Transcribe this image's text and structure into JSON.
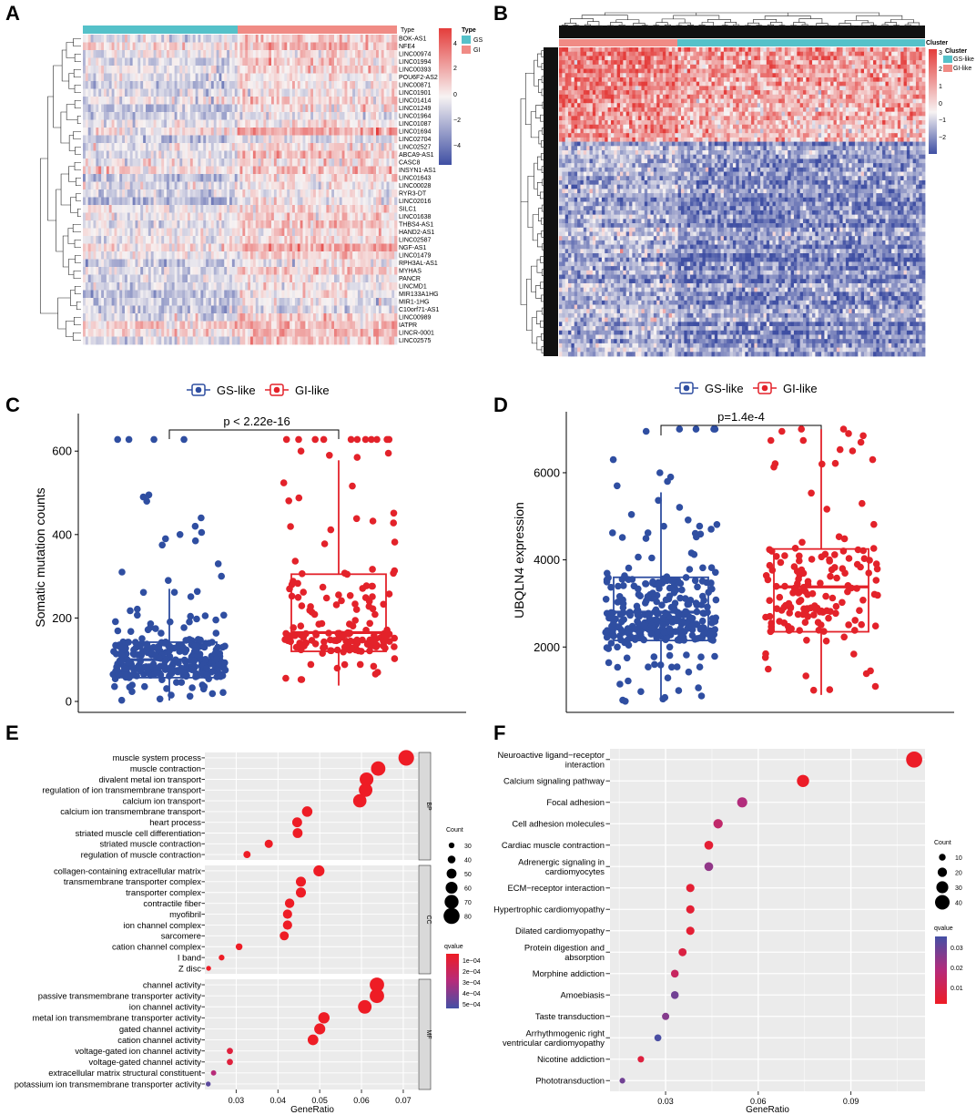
{
  "panel_letters": [
    "A",
    "B",
    "C",
    "D",
    "E",
    "F"
  ],
  "colors": {
    "gs": "#2f4ea1",
    "gi": "#e3222a",
    "teal": "#55c1c9",
    "salmon": "#f08b85",
    "heat_high": "#e43d3b",
    "heat_low": "#3f4fa3",
    "heat_mid": "#f7f3f3"
  },
  "chart_data": [
    {
      "id": "A",
      "type": "heatmap",
      "annotation_title": "Type",
      "legend_title": "Type",
      "legend_items": [
        "GS",
        "GI"
      ],
      "color_scale_labels": [
        "4",
        "2",
        "0",
        "−2",
        "−4"
      ],
      "rows": [
        "BOK-AS1",
        "NFE4",
        "LINC00974",
        "LINC01994",
        "LINC00393",
        "POU6F2-AS2",
        "LINC00871",
        "LINC01901",
        "LINC01414",
        "LINC01249",
        "LINC01964",
        "LINC01087",
        "LINC01694",
        "LINC02704",
        "LINC02527",
        "ABCA9-AS1",
        "CASC8",
        "INSYN1-AS1",
        "LINC01643",
        "LINC00028",
        "RYR3-DT",
        "LINC02016",
        "SILC1",
        "LINC01638",
        "THBS4-AS1",
        "HAND2-AS1",
        "LINC02587",
        "NGF-AS1",
        "LINC01479",
        "RPH3AL-AS1",
        "MYHAS",
        "PANCR",
        "LINCMD1",
        "MIR133A1HG",
        "MIR1-1HG",
        "C10orf71-AS1",
        "LINC00989",
        "IATPR",
        "LINCR-0001",
        "LINC02575"
      ]
    },
    {
      "id": "B",
      "type": "heatmap",
      "annotation_title": "Cluster",
      "legend_title": "Cluster",
      "legend_items": [
        "GS-like",
        "GI-like"
      ],
      "color_scale_labels": [
        "3",
        "2",
        "1",
        "0",
        "−1",
        "−2"
      ]
    },
    {
      "id": "C",
      "type": "box",
      "legend": [
        "GS-like",
        "GI-like"
      ],
      "ylabel": "Somatic mutation counts",
      "yticks": [
        "0",
        "200",
        "400",
        "600"
      ],
      "ylim": [
        0,
        690
      ],
      "pvalue": "p < 2.22e-16",
      "groups": [
        {
          "name": "GS-like",
          "q1": 57,
          "median": 100,
          "q3": 142,
          "whisker_low": 2,
          "whisker_high": 270
        },
        {
          "name": "GI-like",
          "q1": 120,
          "median": 165,
          "q3": 305,
          "whisker_low": 38,
          "whisker_high": 578
        }
      ]
    },
    {
      "id": "D",
      "type": "box",
      "legend": [
        "GS-like",
        "GI-like"
      ],
      "ylabel": "UBQLN4 expression",
      "yticks": [
        "2000",
        "4000",
        "6000"
      ],
      "ylim": [
        500,
        7400
      ],
      "pvalue": "p=1.4e-4",
      "groups": [
        {
          "name": "GS-like",
          "q1": 2150,
          "median": 2800,
          "q3": 3600,
          "whisker_low": 750,
          "whisker_high": 5550
        },
        {
          "name": "GI-like",
          "q1": 2350,
          "median": 3380,
          "q3": 4250,
          "whisker_low": 900,
          "whisker_high": 7000
        }
      ]
    },
    {
      "id": "E",
      "type": "scatter",
      "xlabel": "GeneRatio",
      "xticks": [
        "0.03",
        "0.04",
        "0.05",
        "0.06",
        "0.07"
      ],
      "xlim": [
        0.0225,
        0.0735
      ],
      "count_title": "Count",
      "count_breaks": [
        "30",
        "40",
        "50",
        "60",
        "70",
        "80"
      ],
      "q_title": "qvalue",
      "q_labels": [
        "1e−04",
        "2e−04",
        "3e−04",
        "4e−04",
        "5e−04"
      ],
      "facets": [
        {
          "name": "BP",
          "terms": [
            {
              "term": "muscle system process",
              "x": 0.0707,
              "count": 78,
              "q": 0.0
            },
            {
              "term": "muscle contraction",
              "x": 0.064,
              "count": 72,
              "q": 0.0
            },
            {
              "term": "divalent metal ion transport",
              "x": 0.0612,
              "count": 69,
              "q": 0.0
            },
            {
              "term": "regulation of ion transmembrane transport",
              "x": 0.061,
              "count": 68,
              "q": 0.0
            },
            {
              "term": "calcium ion transport",
              "x": 0.0596,
              "count": 67,
              "q": 0.0
            },
            {
              "term": "calcium ion transmembrane transport",
              "x": 0.047,
              "count": 53,
              "q": 0.0
            },
            {
              "term": "heart process",
              "x": 0.0446,
              "count": 50,
              "q": 0.0
            },
            {
              "term": "striated muscle cell differentiation",
              "x": 0.0447,
              "count": 50,
              "q": 0.0
            },
            {
              "term": "striated muscle contraction",
              "x": 0.0378,
              "count": 42,
              "q": 0.0
            },
            {
              "term": "regulation of muscle contraction",
              "x": 0.0326,
              "count": 37,
              "q": 0.0
            }
          ]
        },
        {
          "name": "CC",
          "terms": [
            {
              "term": "collagen-containing extracellular matrix",
              "x": 0.0498,
              "count": 56,
              "q": 0.0
            },
            {
              "term": "transmembrane transporter complex",
              "x": 0.0455,
              "count": 51,
              "q": 0.0
            },
            {
              "term": "transporter complex",
              "x": 0.0455,
              "count": 51,
              "q": 0.0
            },
            {
              "term": "contractile fiber",
              "x": 0.0428,
              "count": 48,
              "q": 0.0
            },
            {
              "term": "myofibril",
              "x": 0.0423,
              "count": 47,
              "q": 0.0
            },
            {
              "term": "ion channel complex",
              "x": 0.0423,
              "count": 47,
              "q": 0.0
            },
            {
              "term": "sarcomere",
              "x": 0.0415,
              "count": 46,
              "q": 0.0
            },
            {
              "term": "cation channel complex",
              "x": 0.0307,
              "count": 35,
              "q": 0.0
            },
            {
              "term": "I band",
              "x": 0.0265,
              "count": 30,
              "q": 0.0
            },
            {
              "term": "Z disc",
              "x": 0.0234,
              "count": 26,
              "q": 0.0
            }
          ]
        },
        {
          "name": "MF",
          "terms": [
            {
              "term": "channel activity",
              "x": 0.0637,
              "count": 72,
              "q": 0.0
            },
            {
              "term": "passive transmembrane transporter activity",
              "x": 0.0637,
              "count": 72,
              "q": 0.0
            },
            {
              "term": "ion channel activity",
              "x": 0.0608,
              "count": 68,
              "q": 0.0
            },
            {
              "term": "metal ion transmembrane transporter activity",
              "x": 0.051,
              "count": 57,
              "q": 0.0
            },
            {
              "term": "gated channel activity",
              "x": 0.05,
              "count": 56,
              "q": 0.0
            },
            {
              "term": "cation channel activity",
              "x": 0.0484,
              "count": 54,
              "q": 0.0
            },
            {
              "term": "voltage-gated ion channel activity",
              "x": 0.0285,
              "count": 32,
              "q": 8e-05
            },
            {
              "term": "voltage-gated channel activity",
              "x": 0.0285,
              "count": 32,
              "q": 8e-05
            },
            {
              "term": "extracellular matrix structural constituent",
              "x": 0.0246,
              "count": 28,
              "q": 0.00029
            },
            {
              "term": "potassium ion transmembrane transporter activity",
              "x": 0.0233,
              "count": 26,
              "q": 0.00054
            }
          ]
        }
      ]
    },
    {
      "id": "F",
      "type": "scatter",
      "xlabel": "GeneRatio",
      "xticks": [
        "0.03",
        "0.06",
        "0.09"
      ],
      "xlim": [
        0.012,
        0.114
      ],
      "count_title": "Count",
      "count_breaks": [
        "10",
        "20",
        "30",
        "40"
      ],
      "q_title": "qvalue",
      "q_labels": [
        "0.03",
        "0.02",
        "0.01"
      ],
      "terms": [
        {
          "term": [
            "Neuroactive ligand−receptor",
            "interaction"
          ],
          "x": 0.1105,
          "count": 46,
          "q": 0.0005
        },
        {
          "term": [
            "Calcium signaling pathway"
          ],
          "x": 0.0745,
          "count": 31,
          "q": 0.0005
        },
        {
          "term": [
            "Focal adhesion"
          ],
          "x": 0.0548,
          "count": 23,
          "q": 0.018
        },
        {
          "term": [
            "Cell adhesion molecules"
          ],
          "x": 0.047,
          "count": 20,
          "q": 0.014
        },
        {
          "term": [
            "Cardiac muscle contraction"
          ],
          "x": 0.044,
          "count": 18,
          "q": 0.003
        },
        {
          "term": [
            "Adrenergic signaling in",
            "cardiomyocytes"
          ],
          "x": 0.044,
          "count": 18,
          "q": 0.023
        },
        {
          "term": [
            "ECM−receptor interaction"
          ],
          "x": 0.038,
          "count": 16,
          "q": 0.003
        },
        {
          "term": [
            "Hypertrophic cardiomyopathy"
          ],
          "x": 0.038,
          "count": 16,
          "q": 0.003
        },
        {
          "term": [
            "Dilated cardiomyopathy"
          ],
          "x": 0.038,
          "count": 16,
          "q": 0.003
        },
        {
          "term": [
            "Protein digestion and",
            "absorption"
          ],
          "x": 0.0355,
          "count": 15,
          "q": 0.006
        },
        {
          "term": [
            "Morphine addiction"
          ],
          "x": 0.033,
          "count": 14,
          "q": 0.012
        },
        {
          "term": [
            "Amoebiasis"
          ],
          "x": 0.033,
          "count": 14,
          "q": 0.028
        },
        {
          "term": [
            "Taste transduction"
          ],
          "x": 0.03,
          "count": 12,
          "q": 0.025
        },
        {
          "term": [
            "Arrhythmogenic right",
            "ventricular cardiomyopathy"
          ],
          "x": 0.0275,
          "count": 11,
          "q": 0.034
        },
        {
          "term": [
            "Nicotine addiction"
          ],
          "x": 0.022,
          "count": 9,
          "q": 0.005
        },
        {
          "term": [
            "Phototransduction"
          ],
          "x": 0.016,
          "count": 6,
          "q": 0.028
        }
      ]
    }
  ]
}
